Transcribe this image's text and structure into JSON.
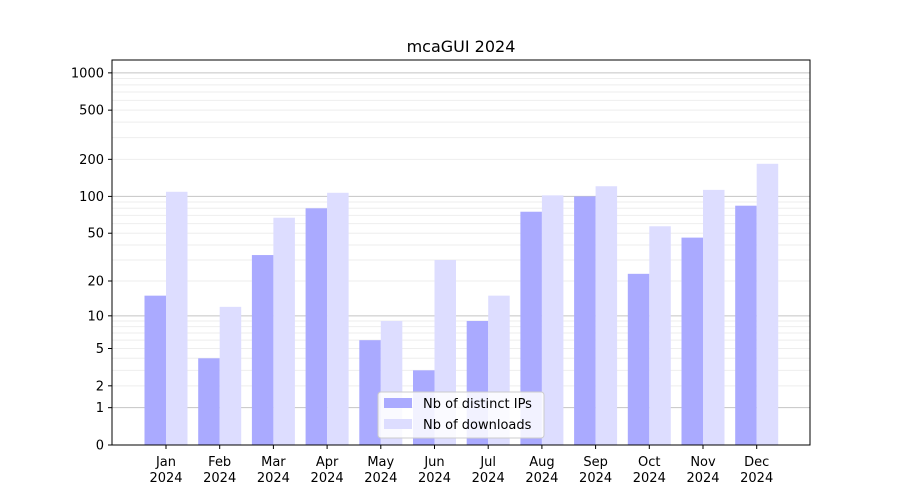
{
  "chart_data": {
    "type": "bar",
    "title": "mcaGUI 2024",
    "xlabel": "",
    "ylabel": "",
    "yscale": "log(1+y)",
    "yticks": [
      0,
      1,
      2,
      5,
      10,
      20,
      50,
      100,
      200,
      500,
      1000
    ],
    "ylim": [
      0,
      1270
    ],
    "grid": true,
    "legend": "lower-center",
    "categories": [
      [
        "Jan",
        "2024"
      ],
      [
        "Feb",
        "2024"
      ],
      [
        "Mar",
        "2024"
      ],
      [
        "Apr",
        "2024"
      ],
      [
        "May",
        "2024"
      ],
      [
        "Jun",
        "2024"
      ],
      [
        "Jul",
        "2024"
      ],
      [
        "Aug",
        "2024"
      ],
      [
        "Sep",
        "2024"
      ],
      [
        "Oct",
        "2024"
      ],
      [
        "Nov",
        "2024"
      ],
      [
        "Dec",
        "2024"
      ]
    ],
    "series": [
      {
        "name": "Nb of distinct IPs",
        "color": "#aaaaff",
        "values": [
          15,
          4,
          33,
          80,
          6,
          3,
          9,
          75,
          100,
          23,
          46,
          84
        ]
      },
      {
        "name": "Nb of downloads",
        "color": "#ddddff",
        "values": [
          109,
          12,
          67,
          107,
          9,
          30,
          15,
          102,
          121,
          57,
          113,
          184
        ]
      }
    ]
  }
}
